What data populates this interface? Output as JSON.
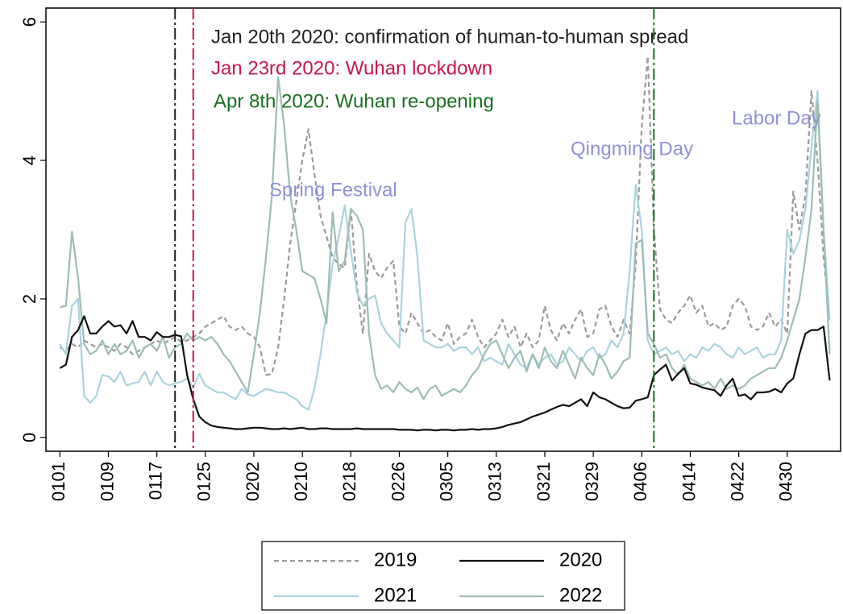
{
  "chart_data": {
    "type": "line",
    "x": [
      0,
      1,
      2,
      3,
      4,
      5,
      6,
      7,
      8,
      9,
      10,
      11,
      12,
      13,
      14,
      15,
      16,
      17,
      18,
      19,
      20,
      21,
      22,
      23,
      24,
      25,
      26,
      27,
      28,
      29,
      30,
      31,
      32,
      33,
      34,
      35,
      36,
      37,
      38,
      39,
      40,
      41,
      42,
      43,
      44,
      45,
      46,
      47,
      48,
      49,
      50,
      51,
      52,
      53,
      54,
      55,
      56,
      57,
      58,
      59,
      60,
      61,
      62,
      63,
      64,
      65,
      66,
      67,
      68,
      69,
      70,
      71,
      72,
      73,
      74,
      75,
      76,
      77,
      78,
      79,
      80,
      81,
      82,
      83,
      84,
      85,
      86,
      87,
      88,
      89,
      90,
      91,
      92,
      93,
      94,
      95,
      96,
      97,
      98,
      99,
      100,
      101,
      102,
      103,
      104,
      105,
      106,
      107,
      108,
      109,
      110,
      111,
      112,
      113,
      114,
      115,
      116,
      117,
      118,
      119,
      120,
      121,
      122,
      123,
      124,
      125,
      126,
      127
    ],
    "series": [
      {
        "name": "2019",
        "color": "#9a9a9a",
        "dash": true,
        "values": [
          1.3,
          1.25,
          1.35,
          1.3,
          1.4,
          1.35,
          1.3,
          1.35,
          1.3,
          1.25,
          1.35,
          1.3,
          1.2,
          1.25,
          1.3,
          1.35,
          1.4,
          1.35,
          1.4,
          1.45,
          1.38,
          1.4,
          1.45,
          1.5,
          1.6,
          1.65,
          1.7,
          1.75,
          1.6,
          1.55,
          1.6,
          1.5,
          1.45,
          1.3,
          0.9,
          0.92,
          1.3,
          2.0,
          2.8,
          3.4,
          4.0,
          4.45,
          3.8,
          3.2,
          2.9,
          2.6,
          2.5,
          2.45,
          3.3,
          2.2,
          1.5,
          2.65,
          2.4,
          2.3,
          2.45,
          2.55,
          1.6,
          1.5,
          1.8,
          1.65,
          1.5,
          1.55,
          1.45,
          1.4,
          1.65,
          1.35,
          1.45,
          1.5,
          1.7,
          1.45,
          1.3,
          1.4,
          1.5,
          1.7,
          1.45,
          1.6,
          1.3,
          1.5,
          1.3,
          1.4,
          1.9,
          1.55,
          1.4,
          1.65,
          1.5,
          1.7,
          1.85,
          1.45,
          1.5,
          1.85,
          1.9,
          1.6,
          1.45,
          1.7,
          1.5,
          2.5,
          4.5,
          5.5,
          3.0,
          1.85,
          1.7,
          1.65,
          1.8,
          1.9,
          2.05,
          1.8,
          1.9,
          1.6,
          1.65,
          1.55,
          1.6,
          1.9,
          2.0,
          1.9,
          1.6,
          1.55,
          1.6,
          1.8,
          1.6,
          1.7,
          1.5,
          3.55,
          3.0,
          3.5,
          5.0,
          4.0,
          2.6,
          1.7
        ]
      },
      {
        "name": "2020",
        "color": "#111111",
        "dash": false,
        "values": [
          1.0,
          1.05,
          1.45,
          1.55,
          1.75,
          1.5,
          1.5,
          1.6,
          1.68,
          1.6,
          1.62,
          1.5,
          1.68,
          1.45,
          1.45,
          1.4,
          1.52,
          1.45,
          1.45,
          1.48,
          1.46,
          0.9,
          0.55,
          0.3,
          0.22,
          0.17,
          0.15,
          0.14,
          0.13,
          0.12,
          0.12,
          0.13,
          0.14,
          0.14,
          0.13,
          0.12,
          0.12,
          0.13,
          0.12,
          0.13,
          0.14,
          0.12,
          0.12,
          0.13,
          0.13,
          0.12,
          0.12,
          0.12,
          0.12,
          0.13,
          0.12,
          0.12,
          0.12,
          0.12,
          0.12,
          0.12,
          0.11,
          0.11,
          0.11,
          0.1,
          0.11,
          0.11,
          0.1,
          0.11,
          0.11,
          0.1,
          0.11,
          0.11,
          0.12,
          0.11,
          0.12,
          0.12,
          0.13,
          0.15,
          0.18,
          0.2,
          0.22,
          0.26,
          0.3,
          0.33,
          0.36,
          0.4,
          0.44,
          0.47,
          0.45,
          0.5,
          0.55,
          0.45,
          0.65,
          0.58,
          0.55,
          0.5,
          0.45,
          0.42,
          0.43,
          0.53,
          0.55,
          0.58,
          0.9,
          0.98,
          1.05,
          0.82,
          0.92,
          1.0,
          0.78,
          0.76,
          0.72,
          0.7,
          0.68,
          0.6,
          0.75,
          0.85,
          0.6,
          0.62,
          0.55,
          0.65,
          0.65,
          0.66,
          0.7,
          0.65,
          0.78,
          0.85,
          1.2,
          1.5,
          1.55,
          1.55,
          1.6,
          0.82
        ]
      },
      {
        "name": "2021",
        "color": "#a9d3df",
        "dash": false,
        "values": [
          1.35,
          1.2,
          1.9,
          2.0,
          0.6,
          0.5,
          0.6,
          0.9,
          0.88,
          0.8,
          0.95,
          0.75,
          0.78,
          0.8,
          0.95,
          0.75,
          0.95,
          0.8,
          0.75,
          0.78,
          0.8,
          0.85,
          0.72,
          0.92,
          0.75,
          0.7,
          0.65,
          0.65,
          0.6,
          0.55,
          0.7,
          0.62,
          0.6,
          0.65,
          0.7,
          0.68,
          0.65,
          0.65,
          0.6,
          0.55,
          0.45,
          0.4,
          0.7,
          1.2,
          1.8,
          2.5,
          2.9,
          3.35,
          2.7,
          2.1,
          1.9,
          2.0,
          2.05,
          1.65,
          1.5,
          1.4,
          1.3,
          3.1,
          3.3,
          2.6,
          1.4,
          1.35,
          1.3,
          1.3,
          1.35,
          1.25,
          1.3,
          1.3,
          1.2,
          1.3,
          1.1,
          1.15,
          1.1,
          1.05,
          1.35,
          1.2,
          1.05,
          1.0,
          1.2,
          1.05,
          1.15,
          1.2,
          1.05,
          1.1,
          1.3,
          1.2,
          1.1,
          1.25,
          1.3,
          1.15,
          1.2,
          1.4,
          1.3,
          1.5,
          2.4,
          3.65,
          3.0,
          1.4,
          1.2,
          1.25,
          1.3,
          1.2,
          1.25,
          1.1,
          1.2,
          1.15,
          1.3,
          1.25,
          1.35,
          1.3,
          1.2,
          1.15,
          1.3,
          1.2,
          1.25,
          1.3,
          1.15,
          1.2,
          1.2,
          1.4,
          3.0,
          2.65,
          2.85,
          3.3,
          4.2,
          5.0,
          3.0,
          1.7
        ]
      },
      {
        "name": "2022",
        "color": "#9dbdb4",
        "dash": false,
        "values": [
          1.88,
          1.9,
          2.97,
          2.3,
          1.35,
          1.2,
          1.25,
          1.4,
          1.2,
          1.35,
          1.2,
          1.25,
          1.4,
          1.15,
          1.3,
          1.35,
          1.25,
          1.45,
          1.15,
          1.3,
          1.35,
          1.5,
          1.4,
          1.45,
          1.4,
          1.45,
          1.35,
          1.2,
          1.1,
          0.95,
          0.8,
          0.65,
          1.2,
          1.8,
          2.6,
          3.5,
          5.2,
          4.5,
          3.5,
          3.0,
          2.4,
          2.35,
          2.3,
          2.0,
          1.65,
          3.25,
          2.4,
          2.55,
          3.3,
          3.2,
          3.0,
          1.5,
          0.9,
          0.7,
          0.75,
          0.65,
          0.8,
          0.7,
          0.65,
          0.72,
          0.55,
          0.7,
          0.75,
          0.6,
          0.65,
          0.7,
          0.65,
          0.75,
          0.9,
          1.0,
          1.2,
          1.35,
          1.4,
          1.2,
          1.0,
          1.15,
          1.25,
          0.95,
          1.2,
          1.0,
          1.3,
          1.1,
          1.0,
          1.25,
          1.05,
          0.85,
          1.15,
          1.0,
          0.9,
          1.2,
          1.05,
          0.85,
          0.95,
          1.1,
          1.15,
          2.8,
          2.85,
          1.5,
          1.35,
          1.15,
          1.2,
          1.0,
          0.9,
          1.05,
          0.85,
          0.8,
          0.75,
          0.8,
          0.7,
          0.85,
          0.7,
          0.75,
          0.7,
          0.75,
          0.85,
          0.9,
          0.95,
          1.0,
          1.0,
          1.15,
          1.4,
          1.7,
          2.0,
          2.6,
          3.3,
          4.85,
          3.0,
          1.2
        ]
      }
    ],
    "xlim": [
      -2.3,
      128.8
    ],
    "xticks": [
      {
        "value": 0,
        "label": "0101"
      },
      {
        "value": 8,
        "label": "0109"
      },
      {
        "value": 16,
        "label": "0117"
      },
      {
        "value": 24,
        "label": "0125"
      },
      {
        "value": 32,
        "label": "0202"
      },
      {
        "value": 40,
        "label": "0210"
      },
      {
        "value": 48,
        "label": "0218"
      },
      {
        "value": 56,
        "label": "0226"
      },
      {
        "value": 64,
        "label": "0305"
      },
      {
        "value": 72,
        "label": "0313"
      },
      {
        "value": 80,
        "label": "0321"
      },
      {
        "value": 88,
        "label": "0329"
      },
      {
        "value": 96,
        "label": "0406"
      },
      {
        "value": 104,
        "label": "0414"
      },
      {
        "value": 112,
        "label": "0422"
      },
      {
        "value": 120,
        "label": "0430"
      }
    ],
    "ylim": [
      -0.2,
      6.2
    ],
    "yticks": [
      0,
      2,
      4,
      6
    ],
    "events": [
      {
        "x": 19,
        "label": "Jan 20th 2020: confirmation of human-to-human spread",
        "color": "#222222"
      },
      {
        "x": 22,
        "label": "Jan 23rd 2020: Wuhan lockdown",
        "color": "#c8174a"
      },
      {
        "x": 98,
        "label": "Apr 8th 2020: Wuhan re-opening",
        "color": "#17701e"
      }
    ],
    "annotations": [
      "Spring Festival",
      "Qingming Day",
      "Labor Day"
    ],
    "annotation_color": "#9090d8",
    "legend": "bottom"
  }
}
